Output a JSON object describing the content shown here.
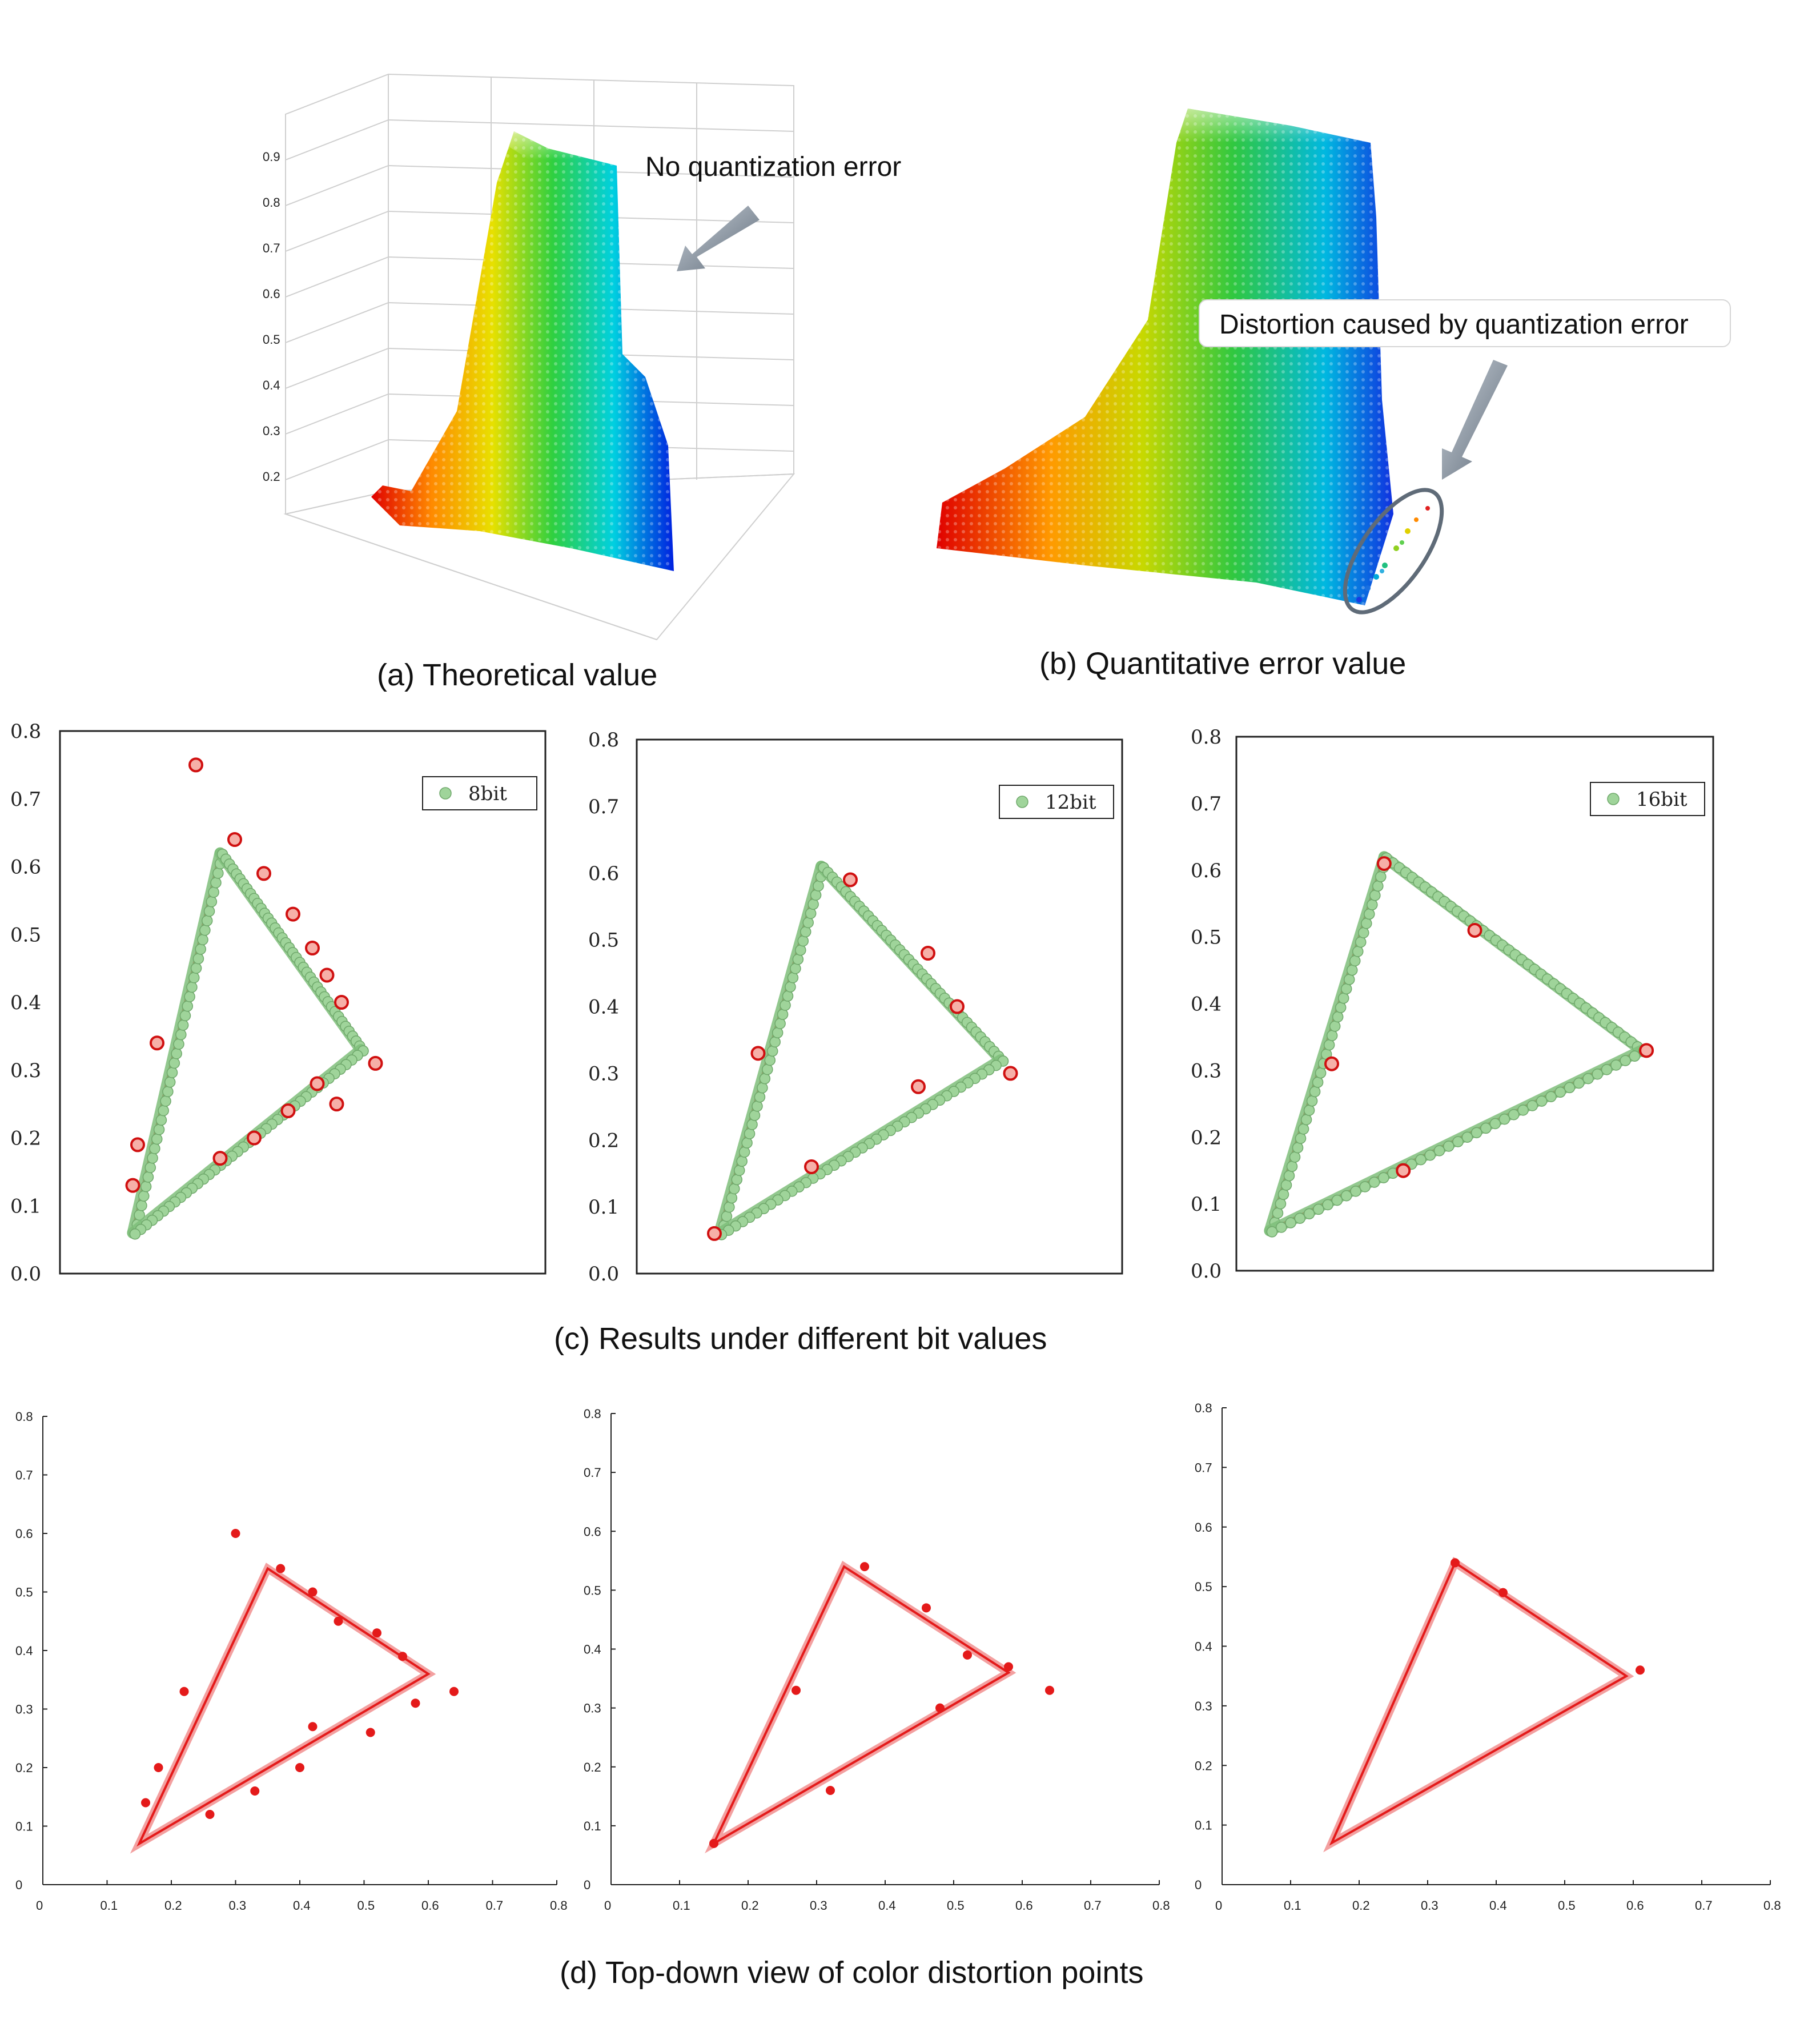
{
  "colors": {
    "red": "#e41a1a",
    "green_marker": "#9fd49a",
    "green_line": "#7fbf7b",
    "axis": "#222222",
    "arrow": "#7b8794",
    "ellipse": "#5f6b78"
  },
  "panels": {
    "a": {
      "caption": "(a) Theoretical value",
      "annotation": "No quantization error"
    },
    "b": {
      "caption": "(b) Quantitative error value",
      "annotation": "Distortion caused by quantization error"
    },
    "c": {
      "caption": "(c) Results under different bit values"
    },
    "d": {
      "caption": "(d) Top-down view of color distortion points"
    }
  },
  "chart_data": [
    {
      "id": "c1",
      "type": "scatter",
      "legend": "8bit",
      "ylim": [
        0,
        0.8
      ],
      "yticks": [
        "0.0",
        "0.1",
        "0.2",
        "0.3",
        "0.4",
        "0.5",
        "0.6",
        "0.7",
        "0.8"
      ],
      "triangle": [
        [
          0.15,
          0.06
        ],
        [
          0.33,
          0.62
        ],
        [
          0.62,
          0.33
        ]
      ],
      "outliers": [
        [
          0.28,
          0.75
        ],
        [
          0.2,
          0.34
        ],
        [
          0.16,
          0.19
        ],
        [
          0.15,
          0.13
        ],
        [
          0.65,
          0.31
        ],
        [
          0.57,
          0.25
        ],
        [
          0.36,
          0.64
        ],
        [
          0.42,
          0.59
        ],
        [
          0.48,
          0.53
        ],
        [
          0.52,
          0.48
        ],
        [
          0.55,
          0.44
        ],
        [
          0.58,
          0.4
        ],
        [
          0.33,
          0.17
        ],
        [
          0.4,
          0.2
        ],
        [
          0.47,
          0.24
        ],
        [
          0.53,
          0.28
        ]
      ]
    },
    {
      "id": "c2",
      "type": "scatter",
      "legend": "12bit",
      "ylim": [
        0,
        0.8
      ],
      "yticks": [
        "0.0",
        "0.1",
        "0.2",
        "0.3",
        "0.4",
        "0.5",
        "0.6",
        "0.7",
        "0.8"
      ],
      "triangle": [
        [
          0.17,
          0.06
        ],
        [
          0.38,
          0.61
        ],
        [
          0.75,
          0.32
        ]
      ],
      "outliers": [
        [
          0.44,
          0.59
        ],
        [
          0.25,
          0.33
        ],
        [
          0.77,
          0.3
        ],
        [
          0.6,
          0.48
        ],
        [
          0.66,
          0.4
        ],
        [
          0.36,
          0.16
        ],
        [
          0.58,
          0.28
        ],
        [
          0.16,
          0.06
        ]
      ]
    },
    {
      "id": "c3",
      "type": "scatter",
      "legend": "16bit",
      "ylim": [
        0,
        0.8
      ],
      "yticks": [
        "0.0",
        "0.1",
        "0.2",
        "0.3",
        "0.4",
        "0.5",
        "0.6",
        "0.7",
        "0.8"
      ],
      "triangle": [
        [
          0.07,
          0.06
        ],
        [
          0.31,
          0.62
        ],
        [
          0.85,
          0.33
        ]
      ],
      "outliers": [
        [
          0.86,
          0.33
        ],
        [
          0.5,
          0.51
        ],
        [
          0.2,
          0.31
        ],
        [
          0.35,
          0.15
        ],
        [
          0.31,
          0.61
        ]
      ]
    },
    {
      "id": "d1",
      "type": "scatter",
      "xlim": [
        0,
        0.8
      ],
      "ylim": [
        0,
        0.8
      ],
      "xticks": [
        "0",
        "0.1",
        "0.2",
        "0.3",
        "0.4",
        "0.5",
        "0.6",
        "0.7",
        "0.8"
      ],
      "yticks": [
        "0",
        "0.1",
        "0.2",
        "0.3",
        "0.4",
        "0.5",
        "0.6",
        "0.7",
        "0.8"
      ],
      "triangle": [
        [
          0.15,
          0.07
        ],
        [
          0.35,
          0.54
        ],
        [
          0.6,
          0.36
        ]
      ],
      "outliers": [
        [
          0.3,
          0.6
        ],
        [
          0.22,
          0.33
        ],
        [
          0.18,
          0.2
        ],
        [
          0.16,
          0.14
        ],
        [
          0.64,
          0.33
        ],
        [
          0.51,
          0.26
        ],
        [
          0.37,
          0.54
        ],
        [
          0.42,
          0.5
        ],
        [
          0.46,
          0.45
        ],
        [
          0.52,
          0.43
        ],
        [
          0.56,
          0.39
        ],
        [
          0.42,
          0.27
        ],
        [
          0.4,
          0.2
        ],
        [
          0.33,
          0.16
        ],
        [
          0.26,
          0.12
        ],
        [
          0.58,
          0.31
        ]
      ]
    },
    {
      "id": "d2",
      "type": "scatter",
      "xlim": [
        0,
        0.8
      ],
      "ylim": [
        0,
        0.8
      ],
      "xticks": [
        "0",
        "0.1",
        "0.2",
        "0.3",
        "0.4",
        "0.5",
        "0.6",
        "0.7",
        "0.8"
      ],
      "yticks": [
        "0",
        "0.1",
        "0.2",
        "0.3",
        "0.4",
        "0.5",
        "0.6",
        "0.7",
        "0.8"
      ],
      "triangle": [
        [
          0.15,
          0.07
        ],
        [
          0.34,
          0.54
        ],
        [
          0.58,
          0.36
        ]
      ],
      "outliers": [
        [
          0.37,
          0.54
        ],
        [
          0.27,
          0.33
        ],
        [
          0.46,
          0.47
        ],
        [
          0.52,
          0.39
        ],
        [
          0.58,
          0.37
        ],
        [
          0.64,
          0.33
        ],
        [
          0.48,
          0.3
        ],
        [
          0.32,
          0.16
        ],
        [
          0.15,
          0.07
        ]
      ]
    },
    {
      "id": "d3",
      "type": "scatter",
      "xlim": [
        0,
        0.8
      ],
      "ylim": [
        0,
        0.8
      ],
      "xticks": [
        "0",
        "0.1",
        "0.2",
        "0.3",
        "0.4",
        "0.5",
        "0.6",
        "0.7",
        "0.8"
      ],
      "yticks": [
        "0",
        "0.1",
        "0.2",
        "0.3",
        "0.4",
        "0.5",
        "0.6",
        "0.7",
        "0.8"
      ],
      "triangle": [
        [
          0.16,
          0.07
        ],
        [
          0.34,
          0.54
        ],
        [
          0.59,
          0.35
        ]
      ],
      "outliers": [
        [
          0.41,
          0.49
        ],
        [
          0.61,
          0.36
        ],
        [
          0.34,
          0.54
        ]
      ]
    }
  ]
}
